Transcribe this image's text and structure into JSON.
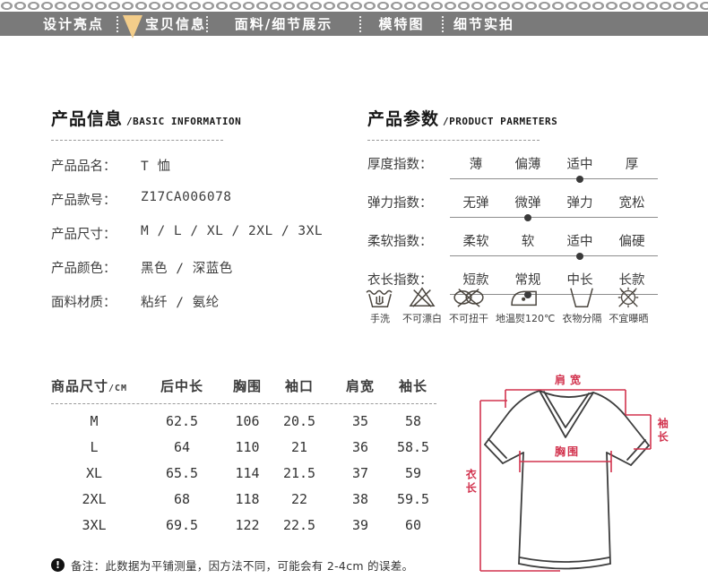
{
  "colors": {
    "nav_bg": "#7a7a7a",
    "active_marker": "#f3cd8a",
    "accent_red": "#d2334e"
  },
  "nav": {
    "items": [
      {
        "label": "设计亮点",
        "active": false
      },
      {
        "label": "宝贝信息",
        "active": true
      },
      {
        "label": "面料/细节展示",
        "active": false
      },
      {
        "label": "模特图",
        "active": false
      },
      {
        "label": "细节实拍",
        "active": false
      }
    ]
  },
  "basic_info": {
    "title": "产品信息",
    "subtitle": "/BASIC INFORMATION",
    "rows": [
      {
        "label": "产品品名：",
        "value": "T 恤"
      },
      {
        "label": "产品款号：",
        "value": "Z17CA006078"
      },
      {
        "label": "产品尺寸：",
        "value": "M / L / XL / 2XL / 3XL"
      },
      {
        "label": "产品颜色：",
        "value": "黑色 / 深蓝色"
      },
      {
        "label": "面料材质：",
        "value": "粘纤 / 氨纶"
      }
    ]
  },
  "parameters": {
    "title": "产品参数",
    "subtitle": "/PRODUCT PARMETERS",
    "rows": [
      {
        "label": "厚度指数：",
        "options": [
          "薄",
          "偏薄",
          "适中",
          "厚"
        ],
        "selected": 2
      },
      {
        "label": "弹力指数：",
        "options": [
          "无弹",
          "微弹",
          "弹力",
          "宽松"
        ],
        "selected": 1
      },
      {
        "label": "柔软指数：",
        "options": [
          "柔软",
          "软",
          "适中",
          "偏硬"
        ],
        "selected": 2
      },
      {
        "label": "衣长指数：",
        "options": [
          "短款",
          "常规",
          "中长",
          "长款"
        ],
        "selected": 1
      }
    ],
    "care": [
      {
        "icon": "hand-wash-icon",
        "label": "手洗"
      },
      {
        "icon": "no-bleach-icon",
        "label": "不可漂白"
      },
      {
        "icon": "no-wring-icon",
        "label": "不可扭干"
      },
      {
        "icon": "low-iron-icon",
        "label": "地温熨120℃"
      },
      {
        "icon": "wash-separately-icon",
        "label": "衣物分隔"
      },
      {
        "icon": "no-sun-icon",
        "label": "不宜曝晒"
      }
    ]
  },
  "size_chart": {
    "title": "商品尺寸",
    "unit": "/CM",
    "columns": [
      "后中长",
      "胸围",
      "袖口",
      "肩宽",
      "袖长"
    ],
    "rows": [
      {
        "size": "M",
        "values": [
          "62.5",
          "106",
          "20.5",
          "35",
          "58"
        ]
      },
      {
        "size": "L",
        "values": [
          "64",
          "110",
          "21",
          "36",
          "58.5"
        ]
      },
      {
        "size": "XL",
        "values": [
          "65.5",
          "114",
          "21.5",
          "37",
          "59"
        ]
      },
      {
        "size": "2XL",
        "values": [
          "68",
          "118",
          "22",
          "38",
          "59.5"
        ]
      },
      {
        "size": "3XL",
        "values": [
          "69.5",
          "122",
          "22.5",
          "39",
          "60"
        ]
      }
    ]
  },
  "note": {
    "icon": "!",
    "text": "备注：此数据为平铺测量，因方法不同，可能会有 2-4cm 的误差。"
  },
  "diagram": {
    "shoulder": "肩宽",
    "sleeve": "袖长",
    "chest": "胸围",
    "length": "衣长"
  }
}
